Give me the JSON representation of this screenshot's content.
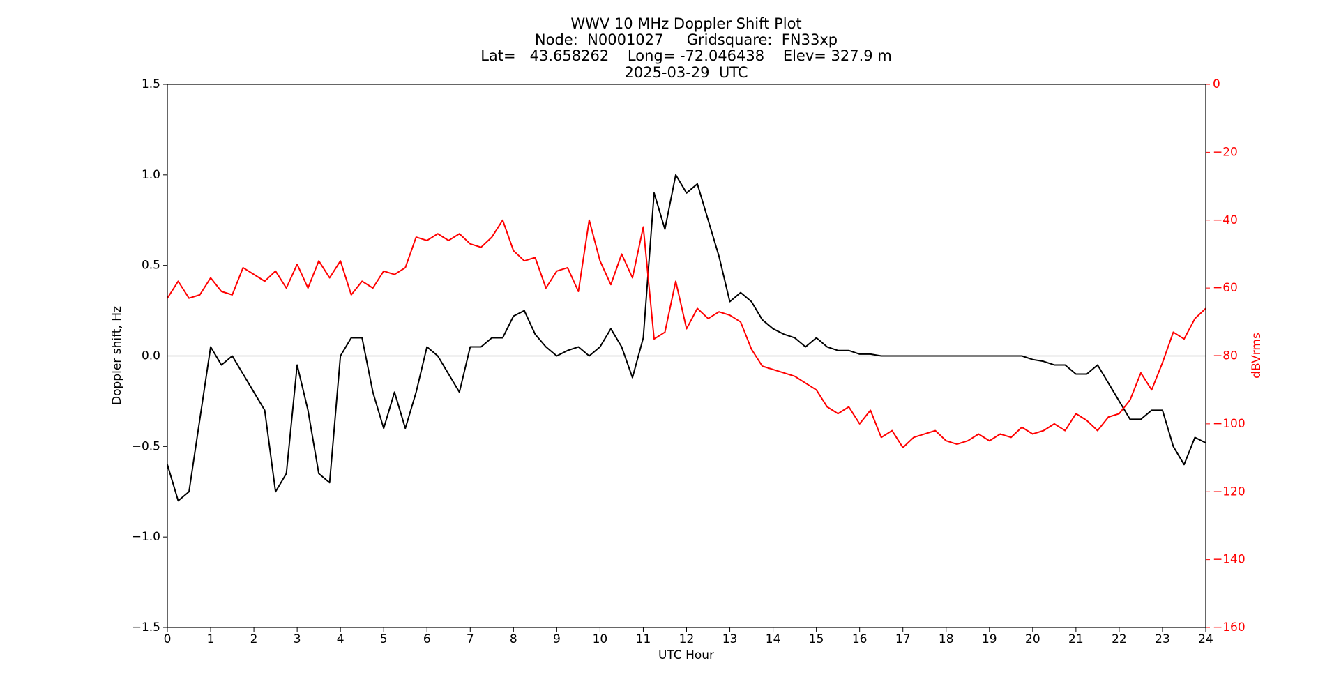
{
  "chart_data": {
    "type": "line",
    "title": "WWV 10 MHz Doppler Shift Plot",
    "subtitle_lines": [
      "Node:  N0001027     Gridsquare:  FN33xp",
      "Lat=   43.658262    Long= -72.046438    Elev= 327.9 m",
      "2025-03-29  UTC"
    ],
    "x_label": "UTC Hour",
    "y_label": "Doppler shift, Hz",
    "y2_label": "dBVrms",
    "y2_color": "#ff0000",
    "zero_line": {
      "y": 0,
      "color": "#888888"
    },
    "xlim": [
      0,
      24
    ],
    "xticks": [
      0,
      1,
      2,
      3,
      4,
      5,
      6,
      7,
      8,
      9,
      10,
      11,
      12,
      13,
      14,
      15,
      16,
      17,
      18,
      19,
      20,
      21,
      22,
      23,
      24
    ],
    "ylim": [
      -1.5,
      1.5
    ],
    "yticks": [
      {
        "value": -1.5,
        "label": "−1.5"
      },
      {
        "value": -1.0,
        "label": "−1.0"
      },
      {
        "value": -0.5,
        "label": "−0.5"
      },
      {
        "value": 0,
        "label": "0.0"
      },
      0.5,
      {
        "value": 1.0,
        "label": "1.0"
      },
      1.5
    ],
    "y2lim": [
      -160,
      0
    ],
    "y2ticks": [
      {
        "value": -160,
        "label": "−160"
      },
      {
        "value": -140,
        "label": "−140"
      },
      {
        "value": -120,
        "label": "−120"
      },
      {
        "value": -100,
        "label": "−100"
      },
      {
        "value": -80,
        "label": "−80"
      },
      {
        "value": -60,
        "label": "−60"
      },
      {
        "value": -40,
        "label": "−40"
      },
      {
        "value": -20,
        "label": "−20"
      },
      0
    ],
    "x": [
      0,
      0.25,
      0.5,
      0.75,
      1,
      1.25,
      1.5,
      1.75,
      2,
      2.25,
      2.5,
      2.75,
      3,
      3.25,
      3.5,
      3.75,
      4,
      4.25,
      4.5,
      4.75,
      5,
      5.25,
      5.5,
      5.75,
      6,
      6.25,
      6.5,
      6.75,
      7,
      7.25,
      7.5,
      7.75,
      8,
      8.25,
      8.5,
      8.75,
      9,
      9.25,
      9.5,
      9.75,
      10,
      10.25,
      10.5,
      10.75,
      11,
      11.25,
      11.5,
      11.75,
      12,
      12.25,
      12.5,
      12.75,
      13,
      13.25,
      13.5,
      13.75,
      14,
      14.25,
      14.5,
      14.75,
      15,
      15.25,
      15.5,
      15.75,
      16,
      16.25,
      16.5,
      16.75,
      17,
      17.25,
      17.5,
      17.75,
      18,
      18.25,
      18.5,
      18.75,
      19,
      19.25,
      19.5,
      19.75,
      20,
      20.25,
      20.5,
      20.75,
      21,
      21.25,
      21.5,
      21.75,
      22,
      22.25,
      22.5,
      22.75,
      23,
      23.25,
      23.5,
      23.75,
      24
    ],
    "series": [
      {
        "name": "Doppler shift",
        "color": "#000000",
        "axis": "y",
        "values": [
          -0.6,
          -0.8,
          -0.75,
          -0.35,
          0.05,
          -0.05,
          0.0,
          -0.1,
          -0.2,
          -0.3,
          -0.75,
          -0.65,
          -0.05,
          -0.3,
          -0.65,
          -0.7,
          0.0,
          0.1,
          0.1,
          -0.2,
          -0.4,
          -0.2,
          -0.4,
          -0.2,
          0.05,
          0.0,
          -0.1,
          -0.2,
          0.05,
          0.05,
          0.1,
          0.1,
          0.22,
          0.25,
          0.12,
          0.05,
          0.0,
          0.03,
          0.05,
          0.0,
          0.05,
          0.15,
          0.05,
          -0.12,
          0.1,
          0.9,
          0.7,
          1.0,
          0.9,
          0.95,
          0.75,
          0.55,
          0.3,
          0.35,
          0.3,
          0.2,
          0.15,
          0.12,
          0.1,
          0.05,
          0.1,
          0.05,
          0.03,
          0.03,
          0.01,
          0.01,
          0.0,
          0.0,
          0.0,
          0.0,
          0.0,
          0.0,
          0.0,
          0.0,
          0.0,
          0.0,
          0.0,
          0.0,
          0.0,
          0.0,
          -0.02,
          -0.03,
          -0.05,
          -0.05,
          -0.1,
          -0.1,
          -0.05,
          -0.15,
          -0.25,
          -0.35,
          -0.35,
          -0.3,
          -0.3,
          -0.5,
          -0.6,
          -0.45,
          -0.48
        ]
      },
      {
        "name": "dBVrms",
        "color": "#ff0000",
        "axis": "y2",
        "values": [
          -63,
          -58,
          -63,
          -62,
          -57,
          -61,
          -62,
          -54,
          -56,
          -58,
          -55,
          -60,
          -53,
          -60,
          -52,
          -57,
          -52,
          -62,
          -58,
          -60,
          -55,
          -56,
          -54,
          -45,
          -46,
          -44,
          -46,
          -44,
          -47,
          -48,
          -45,
          -40,
          -49,
          -52,
          -51,
          -60,
          -55,
          -54,
          -61,
          -40,
          -52,
          -59,
          -50,
          -57,
          -42,
          -75,
          -73,
          -58,
          -72,
          -66,
          -69,
          -67,
          -68,
          -70,
          -78,
          -83,
          -84,
          -85,
          -86,
          -88,
          -90,
          -95,
          -97,
          -95,
          -100,
          -96,
          -104,
          -102,
          -107,
          -104,
          -103,
          -102,
          -105,
          -106,
          -105,
          -103,
          -105,
          -103,
          -104,
          -101,
          -103,
          -102,
          -100,
          -102,
          -97,
          -99,
          -102,
          -98,
          -97,
          -93,
          -85,
          -90,
          -82,
          -73,
          -75,
          -69,
          -66
        ]
      }
    ]
  }
}
